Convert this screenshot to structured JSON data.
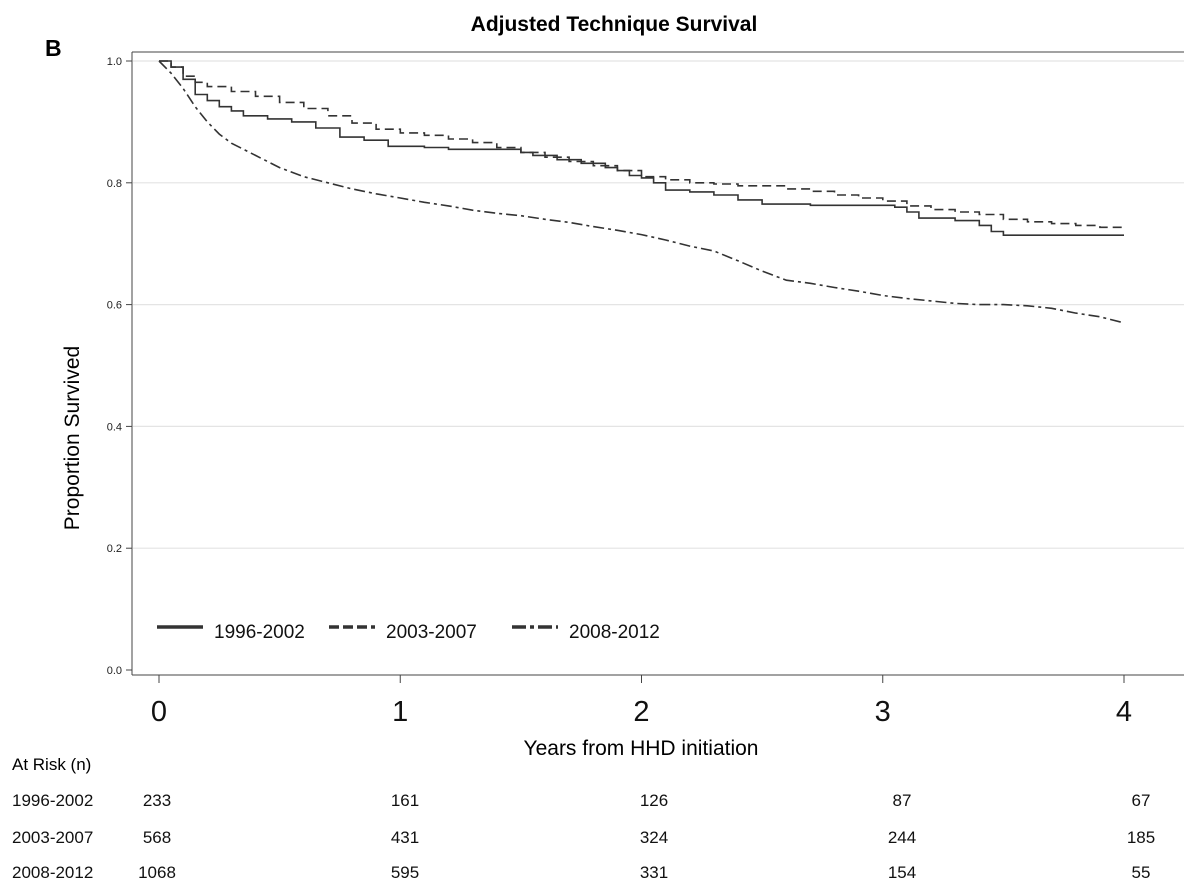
{
  "panel_label": "B",
  "chart_data": {
    "type": "line",
    "title": "Adjusted Technique Survival",
    "xlabel": "Years from HHD initiation",
    "ylabel": "Proportion Survived",
    "xlim": [
      0,
      4
    ],
    "ylim": [
      0,
      1.0
    ],
    "x_ticks": [
      0,
      1,
      2,
      3,
      4
    ],
    "y_ticks": [
      0.0,
      0.2,
      0.4,
      0.6,
      0.8,
      1.0
    ],
    "y_tick_labels": [
      "0.0",
      "0.2",
      "0.4",
      "0.6",
      "0.8",
      "1.0"
    ],
    "grid": "horizontal",
    "legend_position": "bottom-left",
    "series": [
      {
        "name": "1996-2002",
        "line_style": "solid",
        "color": "#333333",
        "step": true,
        "points": [
          [
            0,
            1.0
          ],
          [
            0.05,
            0.99
          ],
          [
            0.1,
            0.97
          ],
          [
            0.15,
            0.945
          ],
          [
            0.2,
            0.935
          ],
          [
            0.25,
            0.925
          ],
          [
            0.3,
            0.918
          ],
          [
            0.35,
            0.91
          ],
          [
            0.45,
            0.905
          ],
          [
            0.55,
            0.9
          ],
          [
            0.65,
            0.89
          ],
          [
            0.75,
            0.875
          ],
          [
            0.85,
            0.87
          ],
          [
            0.95,
            0.86
          ],
          [
            1.0,
            0.86
          ],
          [
            1.1,
            0.858
          ],
          [
            1.2,
            0.855
          ],
          [
            1.35,
            0.855
          ],
          [
            1.5,
            0.85
          ],
          [
            1.55,
            0.845
          ],
          [
            1.65,
            0.838
          ],
          [
            1.75,
            0.832
          ],
          [
            1.85,
            0.825
          ],
          [
            1.9,
            0.82
          ],
          [
            1.95,
            0.812
          ],
          [
            2.0,
            0.808
          ],
          [
            2.05,
            0.8
          ],
          [
            2.1,
            0.788
          ],
          [
            2.2,
            0.785
          ],
          [
            2.3,
            0.78
          ],
          [
            2.4,
            0.772
          ],
          [
            2.5,
            0.765
          ],
          [
            2.7,
            0.763
          ],
          [
            2.9,
            0.763
          ],
          [
            3.05,
            0.76
          ],
          [
            3.1,
            0.752
          ],
          [
            3.15,
            0.742
          ],
          [
            3.3,
            0.738
          ],
          [
            3.4,
            0.73
          ],
          [
            3.45,
            0.72
          ],
          [
            3.5,
            0.714
          ],
          [
            3.7,
            0.714
          ],
          [
            4.0,
            0.714
          ]
        ]
      },
      {
        "name": "2003-2007",
        "line_style": "dashed",
        "color": "#333333",
        "step": true,
        "points": [
          [
            0,
            1.0
          ],
          [
            0.05,
            0.99
          ],
          [
            0.1,
            0.975
          ],
          [
            0.15,
            0.965
          ],
          [
            0.2,
            0.958
          ],
          [
            0.3,
            0.95
          ],
          [
            0.4,
            0.942
          ],
          [
            0.5,
            0.932
          ],
          [
            0.6,
            0.922
          ],
          [
            0.7,
            0.91
          ],
          [
            0.8,
            0.898
          ],
          [
            0.9,
            0.888
          ],
          [
            1.0,
            0.882
          ],
          [
            1.1,
            0.878
          ],
          [
            1.2,
            0.872
          ],
          [
            1.3,
            0.866
          ],
          [
            1.4,
            0.858
          ],
          [
            1.5,
            0.85
          ],
          [
            1.6,
            0.842
          ],
          [
            1.7,
            0.835
          ],
          [
            1.8,
            0.828
          ],
          [
            1.9,
            0.82
          ],
          [
            2.0,
            0.81
          ],
          [
            2.1,
            0.805
          ],
          [
            2.2,
            0.8
          ],
          [
            2.3,
            0.798
          ],
          [
            2.4,
            0.795
          ],
          [
            2.6,
            0.79
          ],
          [
            2.7,
            0.786
          ],
          [
            2.8,
            0.78
          ],
          [
            2.9,
            0.775
          ],
          [
            3.0,
            0.77
          ],
          [
            3.1,
            0.762
          ],
          [
            3.2,
            0.756
          ],
          [
            3.3,
            0.752
          ],
          [
            3.4,
            0.748
          ],
          [
            3.5,
            0.74
          ],
          [
            3.6,
            0.736
          ],
          [
            3.7,
            0.733
          ],
          [
            3.8,
            0.73
          ],
          [
            3.9,
            0.727
          ],
          [
            4.0,
            0.725
          ]
        ]
      },
      {
        "name": "2008-2012",
        "line_style": "dash-dot",
        "color": "#333333",
        "step": false,
        "points": [
          [
            0,
            1.0
          ],
          [
            0.05,
            0.98
          ],
          [
            0.1,
            0.955
          ],
          [
            0.15,
            0.925
          ],
          [
            0.2,
            0.9
          ],
          [
            0.25,
            0.88
          ],
          [
            0.3,
            0.865
          ],
          [
            0.4,
            0.845
          ],
          [
            0.5,
            0.825
          ],
          [
            0.6,
            0.81
          ],
          [
            0.7,
            0.8
          ],
          [
            0.8,
            0.79
          ],
          [
            0.9,
            0.782
          ],
          [
            1.0,
            0.775
          ],
          [
            1.1,
            0.768
          ],
          [
            1.2,
            0.762
          ],
          [
            1.3,
            0.755
          ],
          [
            1.4,
            0.75
          ],
          [
            1.5,
            0.746
          ],
          [
            1.6,
            0.74
          ],
          [
            1.7,
            0.735
          ],
          [
            1.8,
            0.728
          ],
          [
            1.9,
            0.722
          ],
          [
            2.0,
            0.715
          ],
          [
            2.1,
            0.706
          ],
          [
            2.2,
            0.696
          ],
          [
            2.3,
            0.688
          ],
          [
            2.4,
            0.672
          ],
          [
            2.5,
            0.655
          ],
          [
            2.6,
            0.64
          ],
          [
            2.7,
            0.635
          ],
          [
            2.8,
            0.628
          ],
          [
            2.9,
            0.622
          ],
          [
            3.0,
            0.615
          ],
          [
            3.1,
            0.61
          ],
          [
            3.2,
            0.606
          ],
          [
            3.3,
            0.602
          ],
          [
            3.4,
            0.6
          ],
          [
            3.5,
            0.6
          ],
          [
            3.6,
            0.598
          ],
          [
            3.7,
            0.594
          ],
          [
            3.8,
            0.586
          ],
          [
            3.9,
            0.58
          ],
          [
            4.0,
            0.57
          ]
        ]
      }
    ]
  },
  "at_risk": {
    "header": "At Risk (n)",
    "rows": [
      {
        "label": "1996-2002",
        "values": [
          "233",
          "161",
          "126",
          "87",
          "67"
        ]
      },
      {
        "label": "2003-2007",
        "values": [
          "568",
          "431",
          "324",
          "244",
          "185"
        ]
      },
      {
        "label": "2008-2012",
        "values": [
          "1068",
          "595",
          "331",
          "154",
          "55"
        ]
      }
    ]
  }
}
